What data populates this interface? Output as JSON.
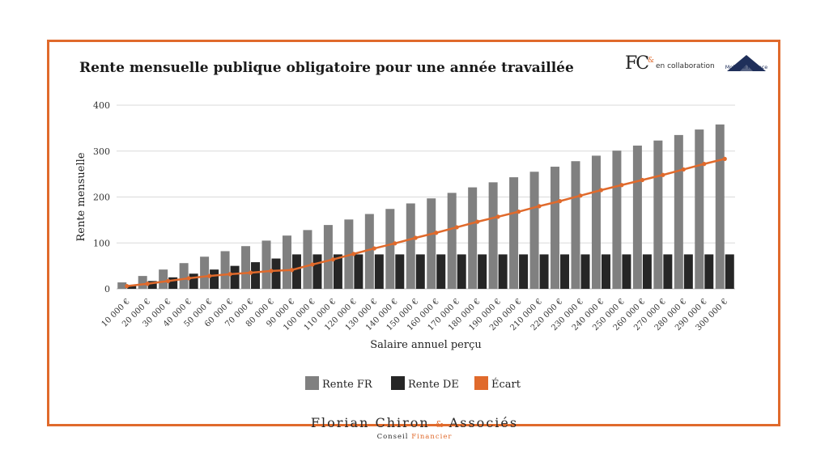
{
  "header": {
    "title": "Rente mensuelle publique obligatoire pour une année travaillée",
    "logo_fc": "FC",
    "logo_fc_amp": "&",
    "collab_text": "en collaboration",
    "partner_logo_text": "Mobilité Finance"
  },
  "footer": {
    "name_part1": "Florian Chiron",
    "amp": "&",
    "name_part2": "Associés",
    "sub_part1": "Conseil",
    "sub_part2": "Financier"
  },
  "colors": {
    "frame": "#e06a2c",
    "rente_fr": "#808080",
    "rente_de": "#262626",
    "ecart": "#e06a2c",
    "gridline": "#d9d9d9"
  },
  "chart_data": {
    "type": "bar",
    "xlabel": "Salaire annuel perçu",
    "ylabel": "Rente mensuelle",
    "ylim": [
      0,
      400
    ],
    "yticks": [
      "0",
      "100",
      "200",
      "300",
      "400"
    ],
    "grid": true,
    "legend_position": "bottom",
    "categories": [
      "10 000 €",
      "20 000 €",
      "30 000 €",
      "40 000 €",
      "50 000 €",
      "60 000 €",
      "70 000 €",
      "80 000 €",
      "90 000 €",
      "100 000 €",
      "110 000 €",
      "120 000 €",
      "130 000 €",
      "140 000 €",
      "150 000 €",
      "160 000 €",
      "170 000 €",
      "180 000 €",
      "190 000 €",
      "200 000 €",
      "210 000 €",
      "220 000 €",
      "230 000 €",
      "240 000 €",
      "250 000 €",
      "260 000 €",
      "270 000 €",
      "280 000 €",
      "290 000 €",
      "300 000 €"
    ],
    "series": [
      {
        "name": "Rente FR",
        "type": "bar",
        "values": [
          14,
          28,
          42,
          56,
          70,
          82,
          93,
          105,
          116,
          128,
          139,
          151,
          163,
          174,
          186,
          197,
          209,
          221,
          232,
          243,
          255,
          266,
          278,
          290,
          301,
          312,
          323,
          335,
          347,
          358
        ]
      },
      {
        "name": "Rente DE",
        "type": "bar",
        "values": [
          8,
          17,
          25,
          33,
          42,
          50,
          58,
          66,
          75,
          75,
          75,
          75,
          75,
          75,
          75,
          75,
          75,
          75,
          75,
          75,
          75,
          75,
          75,
          75,
          75,
          75,
          75,
          75,
          75,
          75
        ]
      },
      {
        "name": "Écart",
        "type": "line",
        "values": [
          6,
          11,
          17,
          23,
          28,
          32,
          35,
          39,
          41,
          53,
          64,
          76,
          88,
          99,
          111,
          122,
          134,
          146,
          157,
          168,
          180,
          191,
          203,
          215,
          226,
          237,
          248,
          260,
          272,
          283
        ]
      }
    ]
  }
}
